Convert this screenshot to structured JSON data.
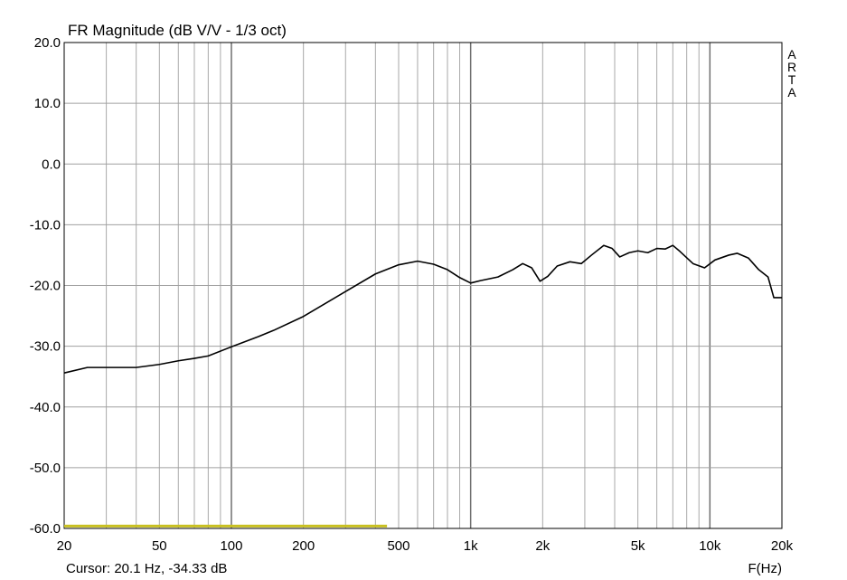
{
  "chart_data": {
    "type": "line",
    "title": "FR Magnitude (dB V/V - 1/3 oct)",
    "x_label": "F(Hz)",
    "cursor": "Cursor: 20.1 Hz, -34.33 dB",
    "watermark": "ARTA",
    "x_scale": "log",
    "grid": true,
    "xlim": [
      20,
      20000
    ],
    "xticks": [
      20,
      50,
      100,
      200,
      {
        "value": 500,
        "label": "500"
      },
      {
        "value": 1000,
        "label": "1k"
      },
      {
        "value": 2000,
        "label": "2k"
      },
      {
        "value": 5000,
        "label": "5k"
      },
      {
        "value": 10000,
        "label": "10k"
      },
      {
        "value": 20000,
        "label": "20k"
      }
    ],
    "x_minor_ticks": [
      30,
      40,
      60,
      70,
      80,
      90,
      300,
      400,
      600,
      700,
      800,
      900,
      3000,
      4000,
      6000,
      7000,
      8000,
      9000
    ],
    "ylim": [
      -60,
      20
    ],
    "yticks": [
      {
        "value": 20,
        "label": "20.0"
      },
      {
        "value": 10,
        "label": "10.0"
      },
      {
        "value": 0,
        "label": "0.0"
      },
      {
        "value": -10,
        "label": "-10.0"
      },
      {
        "value": -20,
        "label": "-20.0"
      },
      {
        "value": -30,
        "label": "-30.0"
      },
      {
        "value": -40,
        "label": "-40.0"
      },
      {
        "value": -50,
        "label": "-50.0"
      },
      {
        "value": -60,
        "label": "-60.0"
      }
    ],
    "series": [
      {
        "color": "#000000",
        "x": [
          20,
          25,
          30,
          40,
          50,
          60,
          70,
          80,
          100,
          130,
          150,
          200,
          300,
          400,
          500,
          600,
          700,
          800,
          900,
          1000,
          1100,
          1300,
          1500,
          1650,
          1800,
          1950,
          2100,
          2300,
          2600,
          2900,
          3200,
          3600,
          3900,
          4200,
          4600,
          5000,
          5500,
          6000,
          6500,
          7000,
          7500,
          8500,
          9500,
          10500,
          12000,
          13000,
          14500,
          16000,
          17500,
          18500,
          20000
        ],
        "values": [
          -34.4,
          -33.5,
          -33.5,
          -33.5,
          -33.0,
          -32.4,
          -32.0,
          -31.6,
          -30.1,
          -28.4,
          -27.4,
          -25.1,
          -21.0,
          -18.1,
          -16.6,
          -16.0,
          -16.5,
          -17.4,
          -18.7,
          -19.6,
          -19.2,
          -18.6,
          -17.4,
          -16.4,
          -17.1,
          -19.3,
          -18.5,
          -16.8,
          -16.1,
          -16.4,
          -15.0,
          -13.4,
          -13.9,
          -15.3,
          -14.6,
          -14.3,
          -14.6,
          -13.9,
          -14.0,
          -13.4,
          -14.4,
          -16.4,
          -17.1,
          -15.8,
          -15.0,
          -14.7,
          -15.5,
          -17.4,
          -18.6,
          -22.0,
          -22.0
        ]
      },
      {
        "color": "#c8c020",
        "x": [
          20,
          447
        ],
        "values": [
          -59.6,
          -59.6
        ]
      }
    ]
  }
}
